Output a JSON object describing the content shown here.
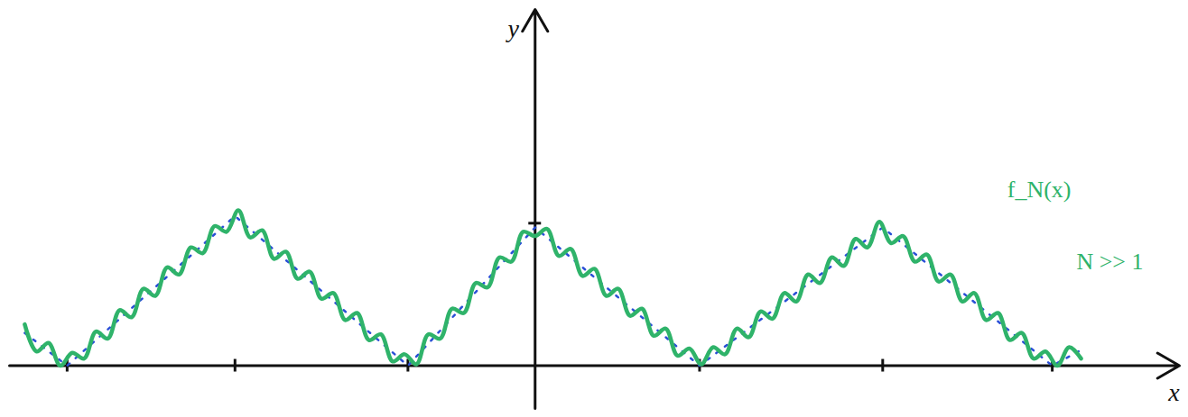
{
  "chart_data": {
    "type": "line",
    "x_label": "x",
    "y_label": "y",
    "annotations": [
      "f_N(x)",
      "N >> 1"
    ],
    "xlim": [
      -3.1,
      3.8
    ],
    "ylim": [
      -0.3,
      2.5
    ],
    "xticks": [
      -2.76,
      -1.77,
      -0.75,
      0.97,
      2.05,
      3.05
    ],
    "yticks": [
      1
    ],
    "tick_labels": false,
    "grid": false,
    "series": [
      {
        "color": "#2a4fd6",
        "line_style": "dotted",
        "x": [
          -3.01,
          -2.76,
          -1.77,
          -0.75,
          0,
          0.97,
          2.05,
          3.05,
          3.22
        ],
        "values": [
          0.23,
          0,
          1.05,
          0,
          0.97,
          0,
          0.97,
          0,
          0.11
        ]
      },
      {
        "color": "#2fb36a",
        "line_style": "solid",
        "x": [
          -3.01,
          -2.94,
          -2.87,
          -2.8,
          -2.73,
          -2.66,
          -2.59,
          -2.52,
          -2.45,
          -2.38,
          -2.31,
          -2.24,
          -2.17,
          -2.1,
          -2.03,
          -1.96,
          -1.89,
          -1.82,
          -1.75,
          -1.68,
          -1.61,
          -1.54,
          -1.47,
          -1.4,
          -1.33,
          -1.26,
          -1.19,
          -1.12,
          -1.05,
          -0.98,
          -0.91,
          -0.84,
          -0.77,
          -0.7,
          -0.63,
          -0.56,
          -0.49,
          -0.42,
          -0.35,
          -0.28,
          -0.21,
          -0.14,
          -0.07,
          0.0,
          0.07,
          0.14,
          0.21,
          0.28,
          0.35,
          0.42,
          0.49,
          0.56,
          0.63,
          0.7,
          0.77,
          0.84,
          0.91,
          0.98,
          1.05,
          1.12,
          1.19,
          1.26,
          1.33,
          1.4,
          1.47,
          1.54,
          1.61,
          1.68,
          1.75,
          1.82,
          1.89,
          1.96,
          2.03,
          2.1,
          2.17,
          2.24,
          2.31,
          2.38,
          2.45,
          2.52,
          2.59,
          2.66,
          2.73,
          2.8,
          2.87,
          2.94,
          3.01,
          3.08,
          3.15,
          3.22
        ],
        "values": [
          0.29,
          0.1,
          0.16,
          0.0,
          0.09,
          0.05,
          0.24,
          0.19,
          0.39,
          0.34,
          0.54,
          0.49,
          0.69,
          0.64,
          0.83,
          0.79,
          0.98,
          0.94,
          1.09,
          0.9,
          0.95,
          0.75,
          0.8,
          0.61,
          0.66,
          0.47,
          0.51,
          0.32,
          0.37,
          0.18,
          0.22,
          0.03,
          0.08,
          0.01,
          0.22,
          0.19,
          0.4,
          0.37,
          0.58,
          0.55,
          0.76,
          0.73,
          0.94,
          0.91,
          0.96,
          0.77,
          0.82,
          0.63,
          0.68,
          0.49,
          0.54,
          0.35,
          0.4,
          0.21,
          0.26,
          0.07,
          0.12,
          0.01,
          0.13,
          0.08,
          0.26,
          0.2,
          0.38,
          0.33,
          0.51,
          0.45,
          0.64,
          0.58,
          0.76,
          0.7,
          0.89,
          0.83,
          1.01,
          0.86,
          0.91,
          0.73,
          0.78,
          0.59,
          0.64,
          0.45,
          0.51,
          0.32,
          0.37,
          0.18,
          0.23,
          0.05,
          0.1,
          0.0,
          0.13,
          0.05
        ]
      }
    ]
  }
}
